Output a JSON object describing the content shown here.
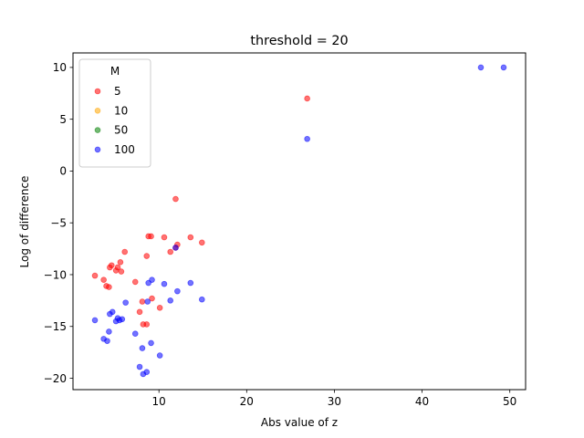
{
  "chart_data": {
    "type": "scatter",
    "title": "threshold = 20",
    "xlabel": "Abs value of z",
    "ylabel": "Log of difference",
    "xlim": [
      0.2,
      51.8
    ],
    "ylim": [
      -21.1,
      11.4
    ],
    "xticks": [
      10,
      20,
      30,
      40,
      50
    ],
    "yticks": [
      -20,
      -15,
      -10,
      -5,
      0,
      5,
      10
    ],
    "grid": false,
    "legend": {
      "title": "M",
      "position": "top-left"
    },
    "series": [
      {
        "name": "5",
        "color": "#ff0000",
        "opacity": 0.55,
        "points": [
          [
            2.7,
            -10.1
          ],
          [
            3.7,
            -10.5
          ],
          [
            4.0,
            -11.1
          ],
          [
            4.3,
            -11.2
          ],
          [
            4.4,
            -9.3
          ],
          [
            4.6,
            -9.1
          ],
          [
            5.1,
            -9.6
          ],
          [
            5.3,
            -9.3
          ],
          [
            5.6,
            -8.8
          ],
          [
            5.7,
            -9.7
          ],
          [
            6.1,
            -7.8
          ],
          [
            7.3,
            -10.7
          ],
          [
            7.8,
            -13.6
          ],
          [
            8.1,
            -12.6
          ],
          [
            8.2,
            -14.8
          ],
          [
            8.6,
            -14.8
          ],
          [
            8.6,
            -8.2
          ],
          [
            8.8,
            -6.3
          ],
          [
            9.1,
            -6.3
          ],
          [
            9.2,
            -12.3
          ],
          [
            10.1,
            -13.2
          ],
          [
            10.6,
            -6.4
          ],
          [
            11.3,
            -7.8
          ],
          [
            11.9,
            -7.4
          ],
          [
            11.9,
            -2.7
          ],
          [
            12.1,
            -7.1
          ],
          [
            13.6,
            -6.4
          ],
          [
            14.9,
            -6.9
          ],
          [
            26.9,
            7.0
          ]
        ]
      },
      {
        "name": "10",
        "color": "#ffa500",
        "opacity": 0.55,
        "points": []
      },
      {
        "name": "50",
        "color": "#008000",
        "opacity": 0.55,
        "points": []
      },
      {
        "name": "100",
        "color": "#0000ff",
        "opacity": 0.55,
        "points": [
          [
            2.7,
            -14.4
          ],
          [
            3.7,
            -16.2
          ],
          [
            4.1,
            -16.4
          ],
          [
            4.3,
            -15.5
          ],
          [
            4.4,
            -13.8
          ],
          [
            4.7,
            -13.6
          ],
          [
            5.1,
            -14.5
          ],
          [
            5.3,
            -14.2
          ],
          [
            5.5,
            -14.4
          ],
          [
            5.8,
            -14.3
          ],
          [
            6.2,
            -12.7
          ],
          [
            7.3,
            -15.7
          ],
          [
            7.8,
            -18.9
          ],
          [
            8.1,
            -17.1
          ],
          [
            8.2,
            -19.6
          ],
          [
            8.6,
            -19.4
          ],
          [
            8.7,
            -12.6
          ],
          [
            8.8,
            -10.8
          ],
          [
            9.1,
            -16.6
          ],
          [
            9.2,
            -10.5
          ],
          [
            10.1,
            -17.8
          ],
          [
            10.6,
            -10.9
          ],
          [
            11.3,
            -12.5
          ],
          [
            11.9,
            -7.4
          ],
          [
            12.1,
            -11.6
          ],
          [
            13.6,
            -10.8
          ],
          [
            14.9,
            -12.4
          ],
          [
            26.9,
            3.1
          ],
          [
            46.7,
            10.0
          ],
          [
            49.3,
            10.0
          ]
        ]
      }
    ],
    "overlay_note": ""
  }
}
